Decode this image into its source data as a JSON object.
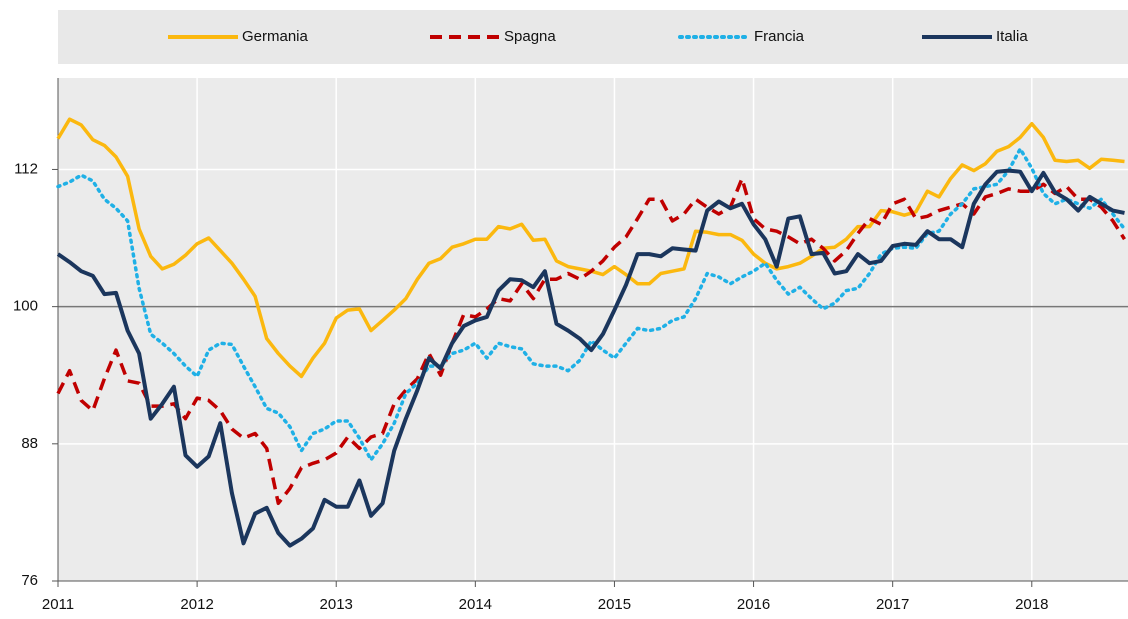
{
  "chart_data": {
    "type": "line",
    "categories": [
      "2011",
      null,
      null,
      null,
      null,
      null,
      null,
      null,
      null,
      null,
      null,
      null,
      "2012",
      null,
      null,
      null,
      null,
      null,
      null,
      null,
      null,
      null,
      null,
      null,
      "2013",
      null,
      null,
      null,
      null,
      null,
      null,
      null,
      null,
      null,
      null,
      null,
      "2014",
      null,
      null,
      null,
      null,
      null,
      null,
      null,
      null,
      null,
      null,
      null,
      "2015",
      null,
      null,
      null,
      null,
      null,
      null,
      null,
      null,
      null,
      null,
      null,
      "2016",
      null,
      null,
      null,
      null,
      null,
      null,
      null,
      null,
      null,
      null,
      null,
      "2017",
      null,
      null,
      null,
      null,
      null,
      null,
      null,
      null,
      null,
      null,
      null,
      "2018",
      null,
      null,
      null,
      null,
      null,
      null,
      null,
      null
    ],
    "ylim": [
      76,
      120
    ],
    "yticks": [
      76,
      88,
      100,
      112
    ],
    "reference": 100,
    "grid": true,
    "legend": "top",
    "series": [
      {
        "name": "Germania",
        "color": "#fbb80f",
        "style": "solid",
        "values": [
          114.7,
          116.4,
          115.9,
          114.6,
          114.1,
          113.1,
          111.4,
          106.8,
          104.4,
          103.3,
          103.7,
          104.5,
          105.5,
          106,
          104.9,
          103.8,
          102.4,
          100.9,
          97.2,
          95.9,
          94.8,
          93.9,
          95.5,
          96.8,
          99,
          99.7,
          99.8,
          97.9,
          98.8,
          99.7,
          100.7,
          102.4,
          103.8,
          104.2,
          105.2,
          105.5,
          105.9,
          105.9,
          107,
          106.8,
          107.2,
          105.8,
          105.9,
          104,
          103.5,
          103.3,
          103.1,
          102.8,
          103.5,
          102.8,
          102,
          102,
          102.9,
          103.1,
          103.3,
          106.6,
          106.5,
          106.3,
          106.3,
          105.8,
          104.6,
          103.8,
          103.3,
          103.5,
          103.8,
          104.4,
          105.1,
          105.2,
          105.9,
          107,
          107,
          108.4,
          108.3,
          108,
          108.3,
          110.1,
          109.6,
          111.2,
          112.4,
          111.9,
          112.5,
          113.6,
          114,
          114.8,
          116,
          114.8,
          112.8,
          112.7,
          112.8,
          112.1,
          112.9,
          112.8,
          112.7
        ]
      },
      {
        "name": "Spagna",
        "color": "#c00000",
        "style": "dashed",
        "values": [
          92.4,
          94.4,
          91.8,
          90.9,
          93.7,
          96.2,
          93.5,
          93.3,
          91.3,
          91.3,
          91.5,
          90.2,
          92,
          91.8,
          90.9,
          89.3,
          88.5,
          88.9,
          87.6,
          82.8,
          84.1,
          85.9,
          86.3,
          86.6,
          87.2,
          88.6,
          87.6,
          88.6,
          88.9,
          91.5,
          92.7,
          93.7,
          95.9,
          94,
          96.8,
          99.3,
          99.1,
          99.8,
          100.7,
          100.5,
          102,
          100.7,
          102.4,
          102.4,
          102.9,
          102.4,
          103.1,
          104,
          105.2,
          106.1,
          107.7,
          109.4,
          109.4,
          107.5,
          108.1,
          109.4,
          108.7,
          108.1,
          108.7,
          111.2,
          107.7,
          106.8,
          106.6,
          106.1,
          105.5,
          105.9,
          105.1,
          104,
          104.9,
          106.4,
          107.7,
          107.2,
          109,
          109.4,
          107.7,
          107.9,
          108.4,
          108.7,
          109,
          108.1,
          109.6,
          109.9,
          110.3,
          110.1,
          110.1,
          110.7,
          109.9,
          110.5,
          109.4,
          109.4,
          108.7,
          107.5,
          105.9
        ]
      },
      {
        "name": "Francia",
        "color": "#1fb0e6",
        "style": "dotted",
        "values": [
          110.5,
          110.9,
          111.5,
          111,
          109.4,
          108.6,
          107.5,
          101.6,
          97.6,
          96.8,
          95.9,
          94.8,
          93.9,
          96.2,
          96.8,
          96.7,
          94.8,
          93,
          91.1,
          90.7,
          89.5,
          87.4,
          88.9,
          89.3,
          90,
          90,
          88.5,
          86.6,
          88,
          89.8,
          92.4,
          93.3,
          94.8,
          94.8,
          95.9,
          96.2,
          96.8,
          95.5,
          96.8,
          96.5,
          96.3,
          95,
          94.8,
          94.8,
          94.4,
          95.3,
          97,
          96.2,
          95.5,
          96.8,
          98.1,
          97.9,
          98.1,
          98.8,
          99.1,
          100.7,
          102.9,
          102.6,
          102,
          102.6,
          103.1,
          103.8,
          102.3,
          101.1,
          101.7,
          100.7,
          99.8,
          100.3,
          101.4,
          101.6,
          102.9,
          104.6,
          105.1,
          105.2,
          105.1,
          106.4,
          106.6,
          108.1,
          109,
          110.3,
          110.5,
          110.7,
          111.9,
          113.8,
          112.1,
          109.9,
          109,
          109.4,
          109,
          108.6,
          109.4,
          108.1,
          106.8
        ]
      },
      {
        "name": "Italia",
        "color": "#1b365d",
        "style": "solid",
        "values": [
          104.6,
          103.9,
          103.1,
          102.7,
          101.1,
          101.2,
          97.9,
          95.9,
          90.2,
          91.5,
          93,
          87,
          86,
          86.9,
          89.8,
          83.7,
          79.3,
          81.9,
          82.4,
          80.2,
          79.1,
          79.7,
          80.6,
          83.1,
          82.5,
          82.5,
          84.8,
          81.7,
          82.8,
          87.4,
          90.2,
          92.7,
          95.5,
          94.6,
          96.8,
          98.3,
          98.8,
          99.1,
          101.4,
          102.4,
          102.3,
          101.7,
          103.1,
          98.5,
          97.9,
          97.2,
          96.2,
          97.6,
          99.7,
          101.9,
          104.6,
          104.6,
          104.4,
          105.1,
          105,
          104.9,
          108.4,
          109.2,
          108.6,
          109,
          107.2,
          105.9,
          103.5,
          107.7,
          107.9,
          104.6,
          104.7,
          102.9,
          103.1,
          104.6,
          103.8,
          104,
          105.3,
          105.5,
          105.4,
          106.6,
          105.9,
          105.9,
          105.2,
          109,
          110.7,
          111.8,
          111.9,
          111.8,
          110.1,
          111.7,
          110,
          109.4,
          108.4,
          109.6,
          109,
          108.4,
          108.2
        ]
      }
    ]
  }
}
